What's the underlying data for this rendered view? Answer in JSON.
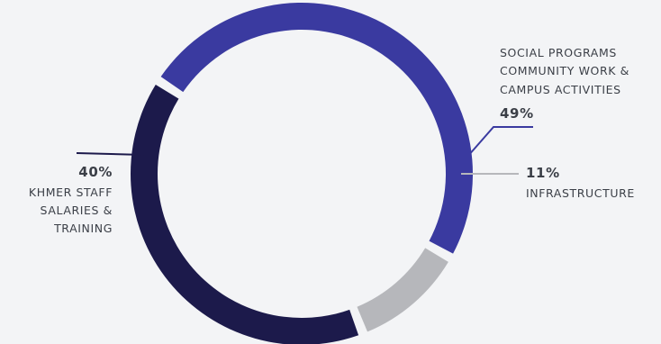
{
  "chart_data": {
    "type": "pie",
    "style": "donut",
    "slices": [
      {
        "value": 49,
        "percent_label": "49%",
        "label_lines": [
          "SOCIAL PROGRAMS",
          "COMMUNITY WORK &",
          "CAMPUS ACTIVITIES"
        ],
        "color": "#3a3aa0",
        "label_position": "top-right"
      },
      {
        "value": 11,
        "percent_label": "11%",
        "label_lines": [
          "INFRASTRUCTURE"
        ],
        "color": "#b6b7bb",
        "label_position": "right"
      },
      {
        "value": 40,
        "percent_label": "40%",
        "label_lines": [
          "KHMER STAFF",
          "SALARIES &",
          "TRAINING"
        ],
        "color": "#1c1a4b",
        "label_position": "left"
      }
    ]
  },
  "colors": {
    "background": "#f3f4f6",
    "text": "#3b3f47"
  }
}
